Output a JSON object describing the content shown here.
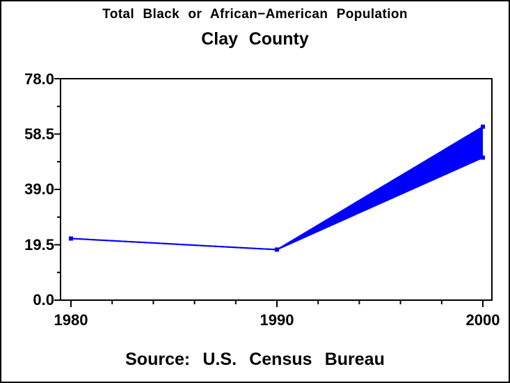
{
  "titles": {
    "line1": "Total Black or African−American Population",
    "line2": "Clay County"
  },
  "footer": {
    "source": "Source: U.S. Census Bureau"
  },
  "chart_data": {
    "type": "area",
    "title": "Total Black or African−American Population",
    "subtitle": "Clay County",
    "source_note": "Source: U.S. Census Bureau",
    "x": [
      1980,
      1990,
      2000
    ],
    "series": [
      {
        "name": "upper-bound",
        "values": [
          21.7,
          17.8,
          61.1
        ]
      },
      {
        "name": "lower-bound",
        "values": [
          21.7,
          17.8,
          50.2
        ]
      }
    ],
    "band_fill_between_series": true,
    "xlabel": "",
    "ylabel": "",
    "xlim": [
      1980,
      2000
    ],
    "ylim": [
      0,
      78
    ],
    "yticks": [
      "0.0",
      "19.5",
      "39.0",
      "58.5",
      "78.0"
    ],
    "ytick_values": [
      0,
      19.5,
      39,
      58.5,
      78
    ],
    "xticks": [
      "1980",
      "1990",
      "2000"
    ],
    "xtick_values": [
      1980,
      1990,
      2000
    ],
    "x_minor_tick_step": 2,
    "y_minor_ticks_per_interval": 1,
    "grid": false,
    "legend": "none",
    "colors": {
      "series": "#0000ff",
      "axis": "#000000",
      "background": "#ffffff"
    }
  }
}
